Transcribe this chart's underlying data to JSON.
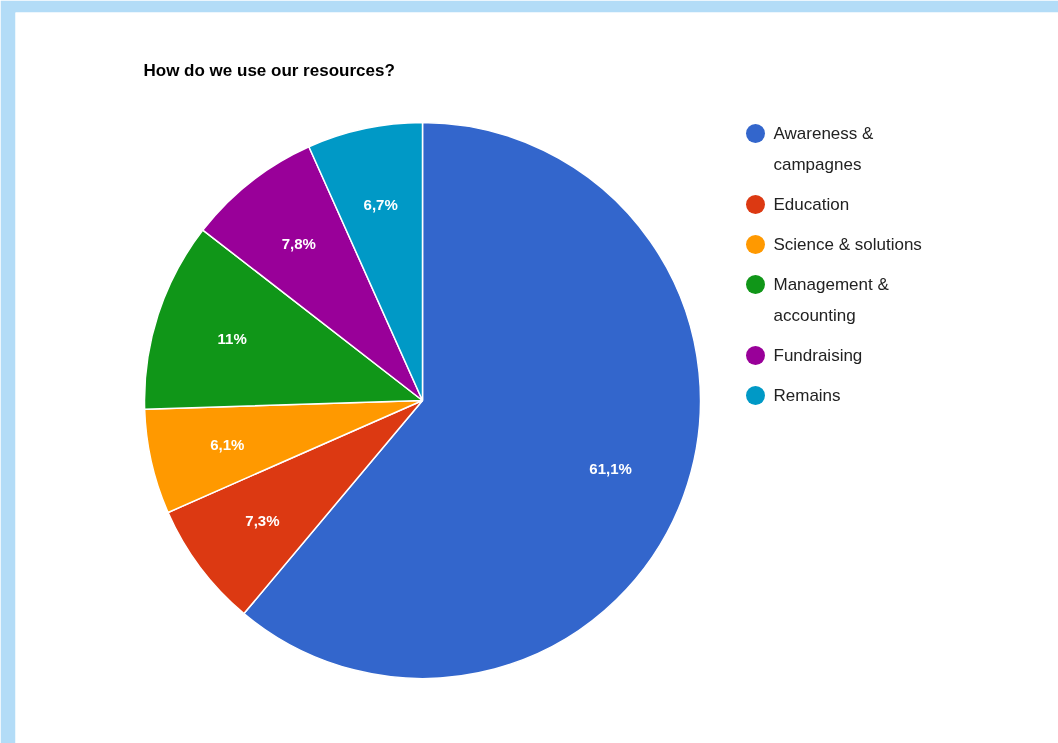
{
  "chart_data": {
    "type": "pie",
    "title": "How do we use our resources?",
    "categories": [
      "Awareness & campagnes",
      "Education",
      "Science & solutions",
      "Management & accounting",
      "Fundraising",
      "Remains"
    ],
    "values": [
      61.1,
      7.3,
      6.1,
      11,
      7.8,
      6.7
    ],
    "colors": [
      "#3366cc",
      "#dc3912",
      "#ff9900",
      "#109618",
      "#990099",
      "#0099c6"
    ],
    "value_labels": [
      "61,1%",
      "7,3%",
      "6,1%",
      "11%",
      "7,8%",
      "6,7%"
    ],
    "legend": "right"
  }
}
